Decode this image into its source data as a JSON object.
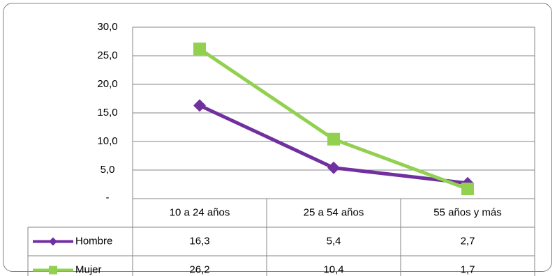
{
  "chart_data": {
    "type": "line",
    "categories": [
      "10 a 24 años",
      "25 a 54 años",
      "55 años y más"
    ],
    "series": [
      {
        "name": "Hombre",
        "values": [
          16.3,
          5.4,
          2.7
        ],
        "display_values": [
          "16,3",
          "5,4",
          "2,7"
        ],
        "color": "#7030a0",
        "marker": "diamond"
      },
      {
        "name": "Mujer",
        "values": [
          26.2,
          10.4,
          1.7
        ],
        "display_values": [
          "26,2",
          "10,4",
          "1,7"
        ],
        "color": "#92d050",
        "marker": "square"
      }
    ],
    "ylim": [
      0,
      30
    ],
    "yticks": [
      0,
      5,
      10,
      15,
      20,
      25,
      30
    ],
    "ytick_labels": [
      "-",
      "5,0",
      "10,0",
      "15,0",
      "20,0",
      "25,0",
      "30,0"
    ],
    "grid": true,
    "legend": "data-table",
    "title": "",
    "xlabel": "",
    "ylabel": ""
  }
}
